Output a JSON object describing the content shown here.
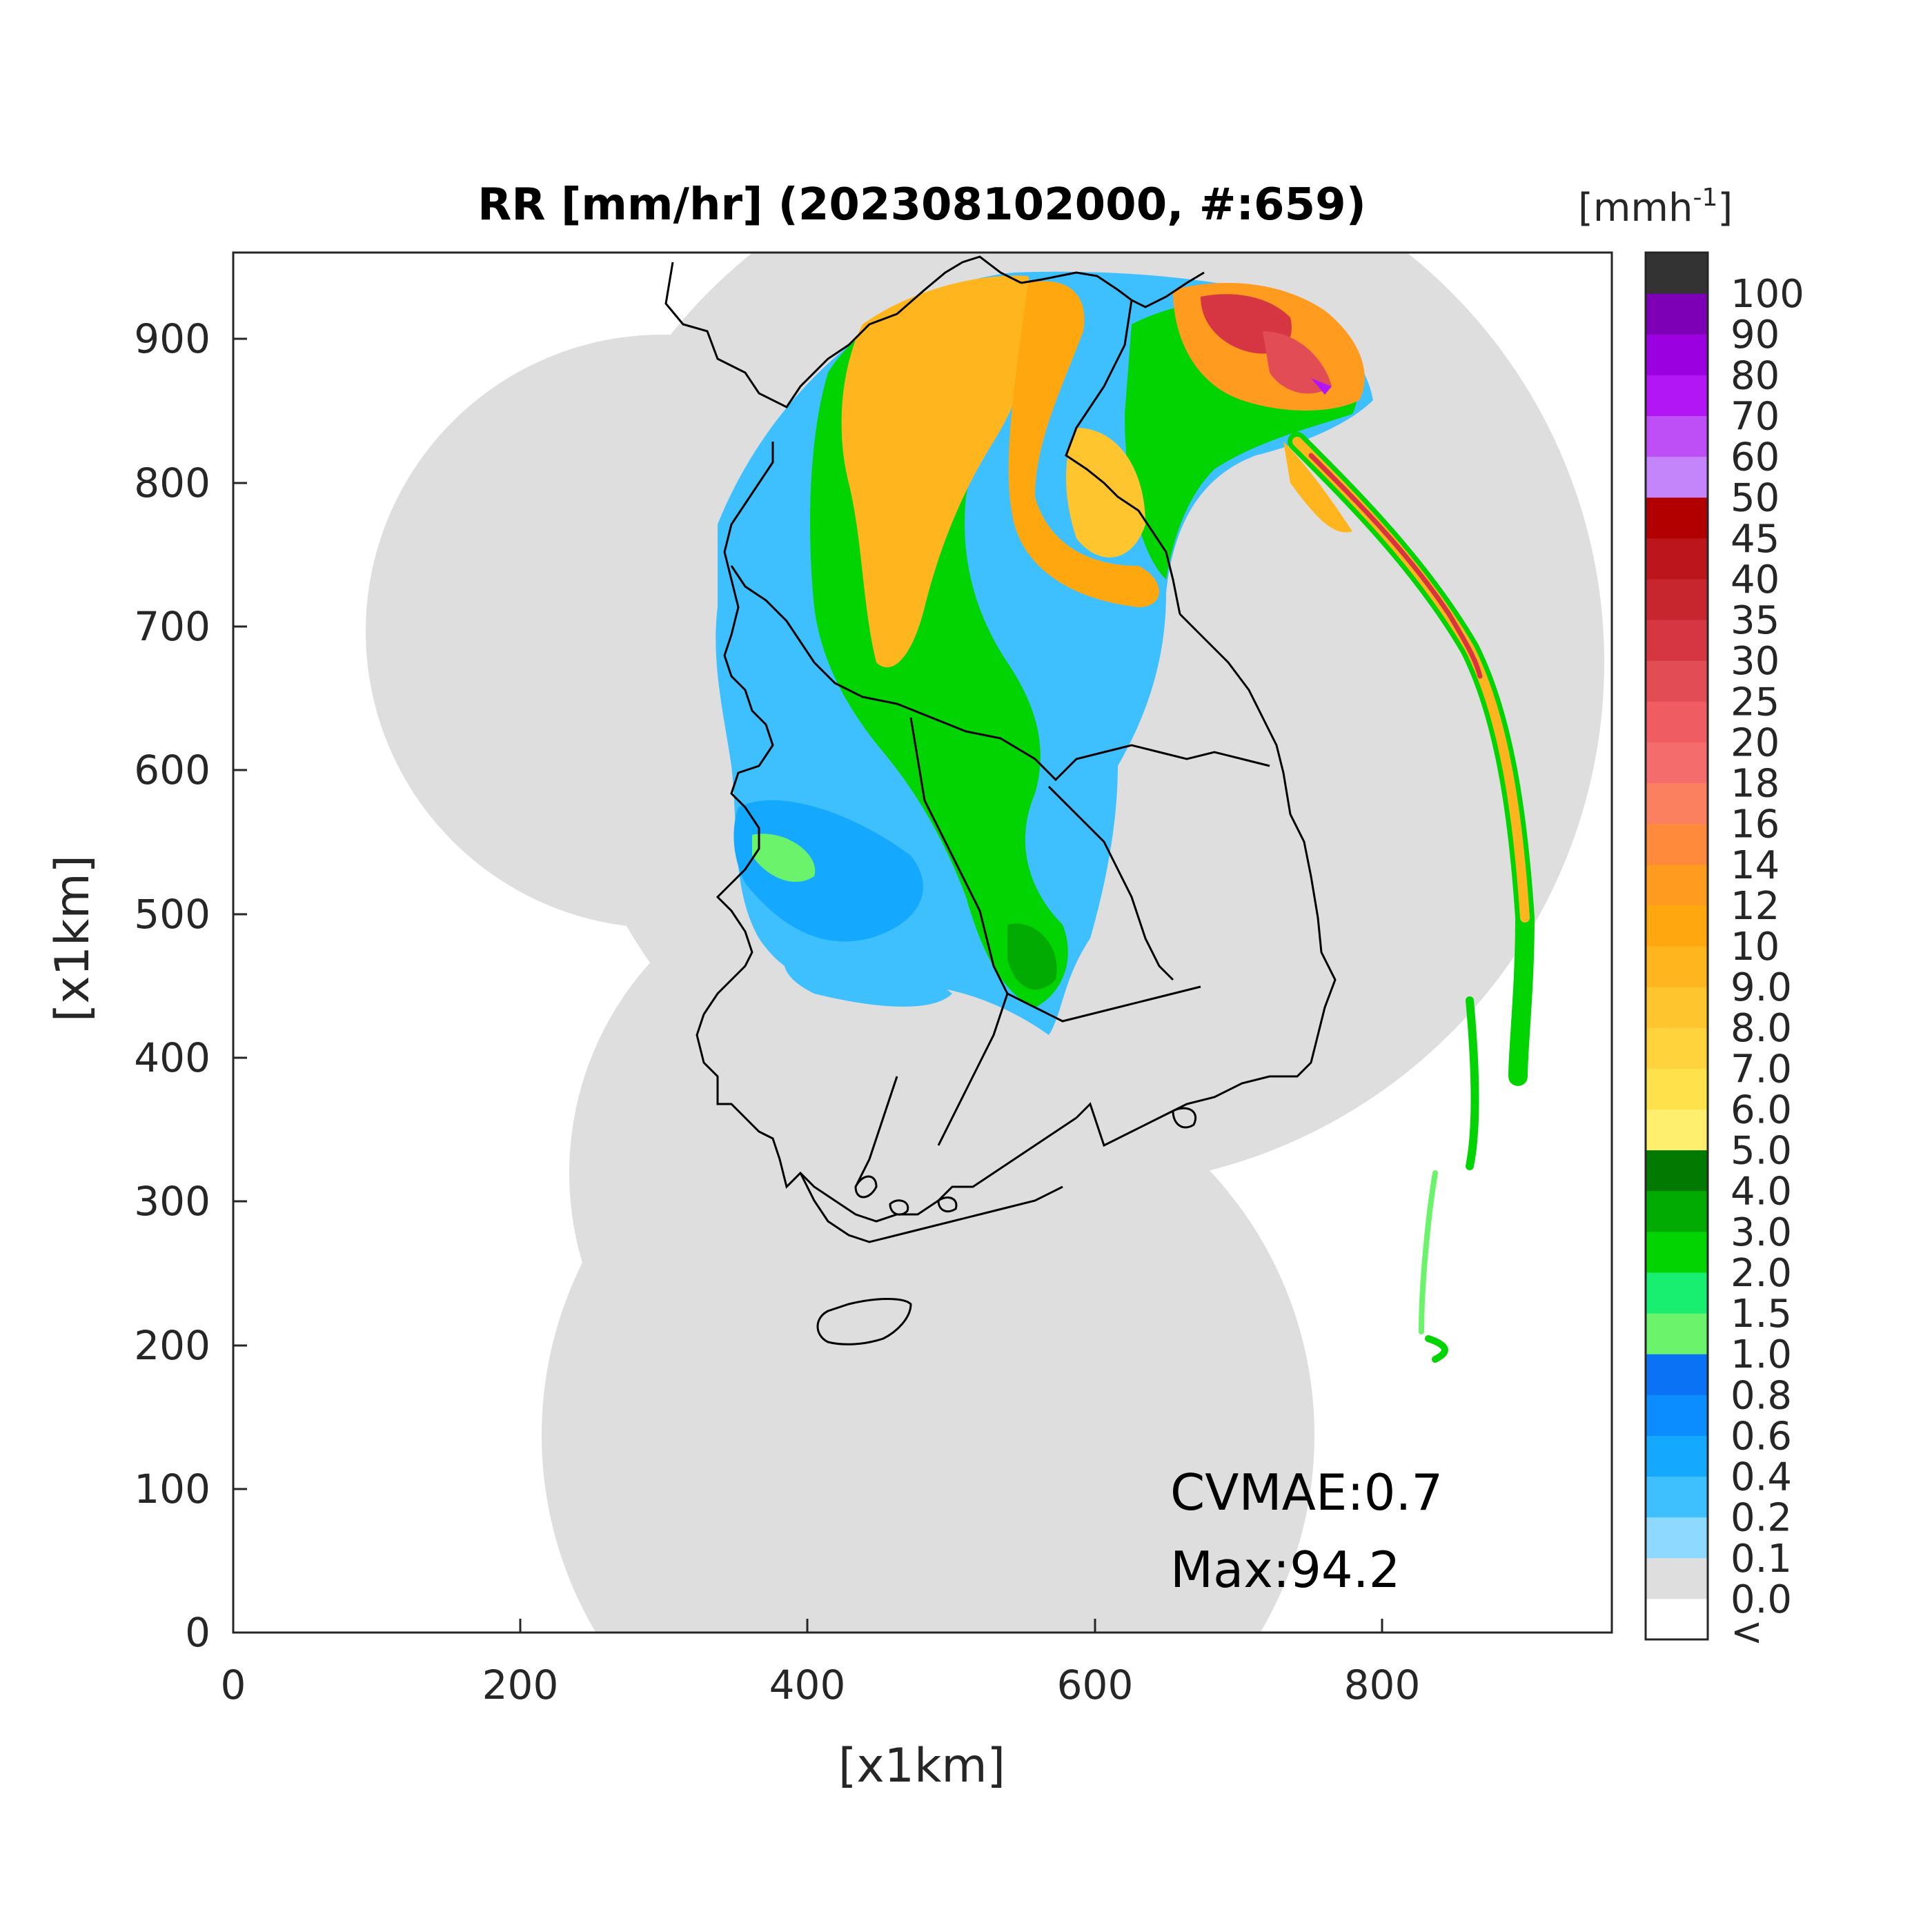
{
  "title": "RR [mm/hr] (202308102000, #:659)",
  "axes": {
    "xlabel": "[x1km]",
    "ylabel": "[x1km]",
    "xticks": [
      0,
      200,
      400,
      600,
      800
    ],
    "yticks": [
      0,
      100,
      200,
      300,
      400,
      500,
      600,
      700,
      800,
      900
    ],
    "xlim": [
      0,
      960
    ],
    "ylim": [
      0,
      960
    ]
  },
  "colorbar": {
    "unit_label": "[mmh",
    "unit_superscript": "-1",
    "unit_close": "]",
    "labels": [
      "<",
      "0.0",
      "0.1",
      "0.2",
      "0.4",
      "0.6",
      "0.8",
      "1.0",
      "1.5",
      "2.0",
      "3.0",
      "4.0",
      "5.0",
      "6.0",
      "7.0",
      "8.0",
      "9.0",
      "10",
      "12",
      "14",
      "16",
      "18",
      "20",
      "25",
      "30",
      "35",
      "40",
      "45",
      "50",
      "60",
      "70",
      "80",
      "90",
      "100"
    ],
    "colors": [
      "#ffffff",
      "#dedede",
      "#8dd9ff",
      "#3ec0ff",
      "#14a9ff",
      "#0b8cff",
      "#0a73f5",
      "#6bf36b",
      "#18ee70",
      "#02d402",
      "#02ab02",
      "#027a02",
      "#ffef6e",
      "#ffe14c",
      "#ffd33c",
      "#ffc52e",
      "#ffb51e",
      "#ffa70f",
      "#ff9b1f",
      "#ff8a3c",
      "#fb8060",
      "#f46c6c",
      "#ef5d62",
      "#e24c55",
      "#d53642",
      "#c8262e",
      "#bc161c",
      "#b20000",
      "#c585fa",
      "#be4ef5",
      "#b316f5",
      "#9a00e0",
      "#7d00b6",
      "#333333"
    ]
  },
  "stats": {
    "cvmae": "CVMAE:0.7",
    "max": "Max:94.2"
  },
  "map_colors": {
    "coverage": "#dedede",
    "coastline": "#000000"
  }
}
